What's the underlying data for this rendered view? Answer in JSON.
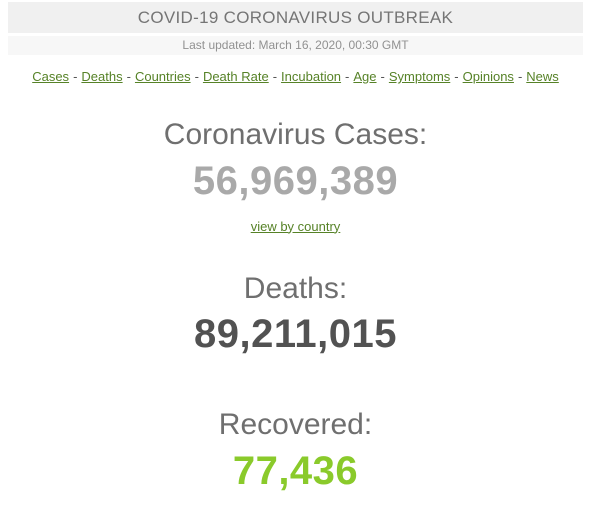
{
  "header": {
    "title": "COVID-19 CORONAVIRUS OUTBREAK",
    "last_updated": "Last updated: March 16, 2020, 00:30 GMT"
  },
  "nav": {
    "separator": "-",
    "links": [
      {
        "label": "Cases"
      },
      {
        "label": "Deaths"
      },
      {
        "label": "Countries"
      },
      {
        "label": "Death Rate"
      },
      {
        "label": "Incubation"
      },
      {
        "label": "Age"
      },
      {
        "label": "Symptoms"
      },
      {
        "label": "Opinions"
      },
      {
        "label": "News"
      }
    ]
  },
  "counters": {
    "cases": {
      "label": "Coronavirus Cases:",
      "value": "56,969,389",
      "link_label": "view by country",
      "value_color": "#a9a9a9"
    },
    "deaths": {
      "label": "Deaths:",
      "value": "89,211,015",
      "value_color": "#525252"
    },
    "recovered": {
      "label": "Recovered:",
      "value": "77,436",
      "value_color": "#8aca2b"
    }
  },
  "colors": {
    "header_bg": "#f0f0f0",
    "header_text": "#757575",
    "subheader_bg": "#f7f7f7",
    "subheader_text": "#919191",
    "link_green": "#568227",
    "heading_gray": "#6f6f6f",
    "recovered_green": "#8aca2b"
  }
}
